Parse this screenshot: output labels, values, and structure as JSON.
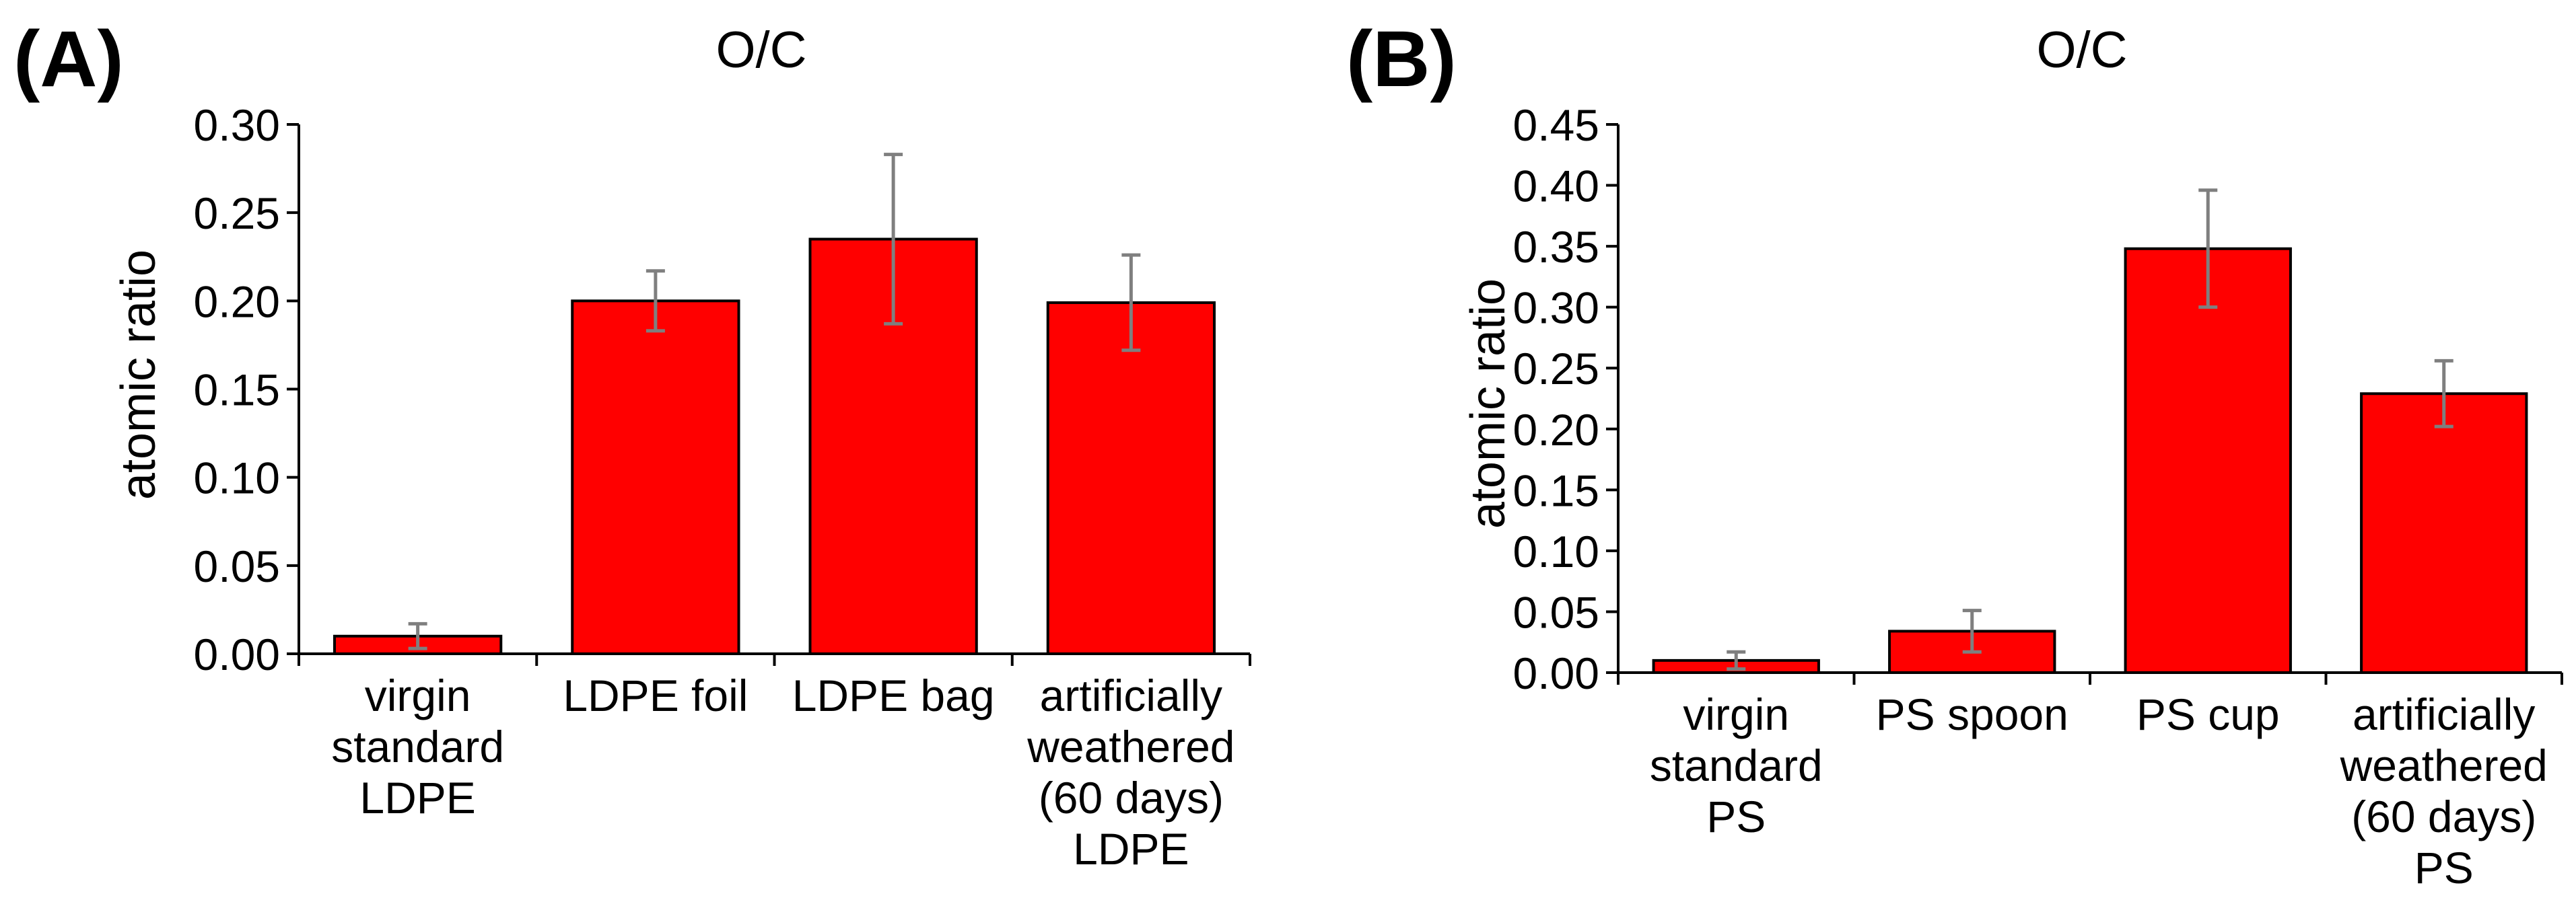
{
  "figure": {
    "colors": {
      "bar": "#ff0000",
      "bar_edge": "#000000",
      "error_bar": "#7f7f7f",
      "axis": "#000000"
    }
  },
  "chart_data": [
    {
      "panel_label": "(A)",
      "type": "bar",
      "title": "O/C",
      "xlabel": "",
      "ylabel": "atomic ratio",
      "ylim": [
        0,
        0.3
      ],
      "yticks": [
        "0.00",
        "0.05",
        "0.10",
        "0.15",
        "0.20",
        "0.25",
        "0.30"
      ],
      "categories": [
        [
          "virgin",
          "standard",
          "LDPE"
        ],
        [
          "LDPE foil"
        ],
        [
          "LDPE bag"
        ],
        [
          "artificially",
          "weathered",
          "(60 days)",
          "LDPE"
        ]
      ],
      "values": [
        0.01,
        0.2,
        0.235,
        0.199
      ],
      "errors": [
        0.007,
        0.017,
        0.048,
        0.027
      ]
    },
    {
      "panel_label": "(B)",
      "type": "bar",
      "title": "O/C",
      "xlabel": "",
      "ylabel": "atomic ratio",
      "ylim": [
        0,
        0.45
      ],
      "yticks": [
        "0.00",
        "0.05",
        "0.10",
        "0.15",
        "0.20",
        "0.25",
        "0.30",
        "0.35",
        "0.40",
        "0.45"
      ],
      "categories": [
        [
          "virgin",
          "standard",
          "PS"
        ],
        [
          "PS spoon"
        ],
        [
          "PS cup"
        ],
        [
          "artificially",
          "weathered",
          "(60 days)",
          "PS"
        ]
      ],
      "values": [
        0.01,
        0.034,
        0.348,
        0.229
      ],
      "errors": [
        0.007,
        0.017,
        0.048,
        0.027
      ]
    }
  ]
}
